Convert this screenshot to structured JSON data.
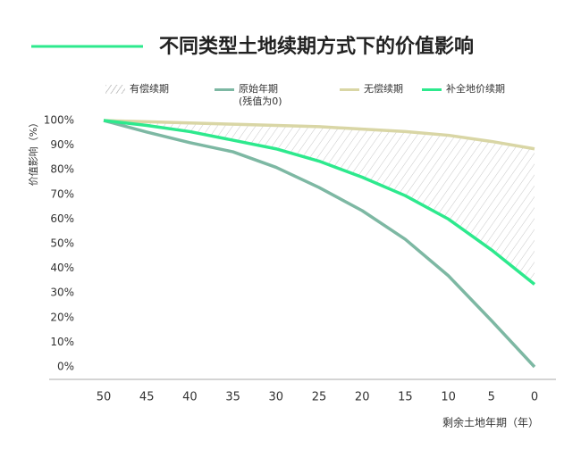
{
  "chart_data": {
    "type": "line",
    "title": "不同类型土地续期方式下的价值影响",
    "x_label": "剩余土地年期（年）",
    "y_label": "价值影响（%）",
    "x": [
      50,
      45,
      40,
      35,
      30,
      25,
      20,
      15,
      10,
      5,
      0
    ],
    "xlim": [
      50,
      0
    ],
    "xticks": [
      50,
      45,
      40,
      35,
      30,
      25,
      20,
      15,
      10,
      5,
      0
    ],
    "ylim": [
      0,
      100
    ],
    "yticks": [
      {
        "value": 0,
        "label": "0%"
      },
      {
        "value": 10,
        "label": "10%"
      },
      {
        "value": 20,
        "label": "20%"
      },
      {
        "value": 30,
        "label": "30%"
      },
      {
        "value": 40,
        "label": "40%"
      },
      {
        "value": 50,
        "label": "50%"
      },
      {
        "value": 60,
        "label": "60%"
      },
      {
        "value": 70,
        "label": "70%"
      },
      {
        "value": 80,
        "label": "80%"
      },
      {
        "value": 90,
        "label": "90%"
      },
      {
        "value": 100,
        "label": "100%"
      }
    ],
    "shaded_area": {
      "name": "有偿续期",
      "upper": "无偿续期",
      "lower": "补全地价续期"
    },
    "series": [
      {
        "name": "原始年期\n(残值为0)",
        "color": "#7db8a3",
        "values": [
          100,
          95.3,
          91,
          87.3,
          81,
          72.8,
          63.4,
          51.8,
          37,
          18.8,
          0
        ]
      },
      {
        "name": "无偿续期",
        "color": "#d9d6a5",
        "values": [
          100,
          99.5,
          99,
          98.5,
          98,
          97.5,
          96.5,
          95.5,
          94,
          91.5,
          88.5
        ]
      },
      {
        "name": "补全地价续期",
        "color": "#2de98d",
        "values": [
          100,
          98,
          95.5,
          92,
          88.5,
          83.5,
          77,
          69.5,
          60,
          47.5,
          33.5
        ]
      }
    ]
  }
}
